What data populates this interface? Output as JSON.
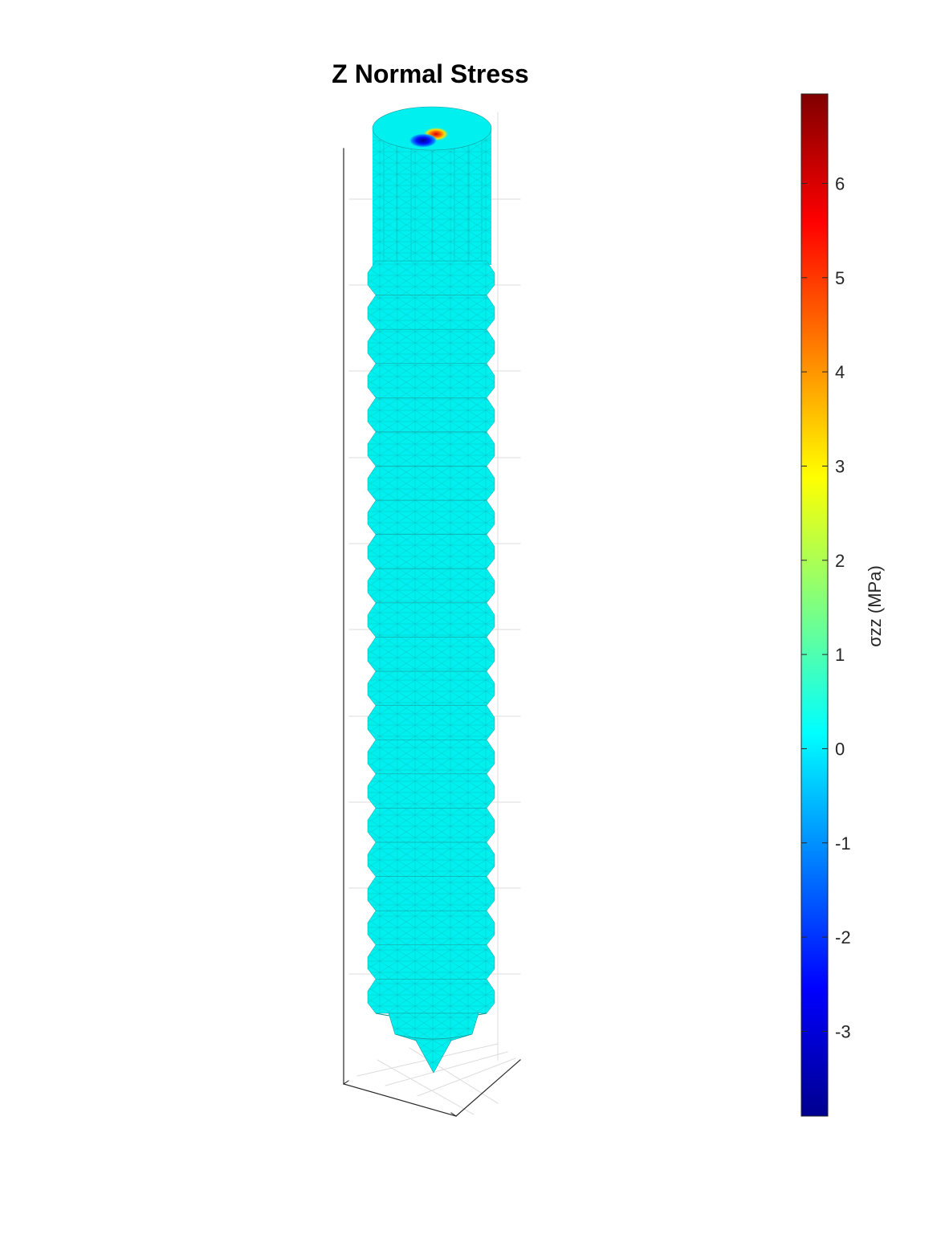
{
  "chart_data": {
    "type": "heatmap",
    "title": "Z Normal Stress",
    "subtitle": "",
    "xlabel": "",
    "ylabel": "",
    "zlabel": "",
    "view": "3d",
    "grid": true,
    "colormap": "jet",
    "colors": {
      "surface": "#00f0f0",
      "edge": "#1d9a9a",
      "axis": "#262626",
      "grid": "#dcdcdc"
    },
    "surface_value_mpa": 0.0,
    "hotspot": {
      "location": "top face",
      "max": 6.9,
      "min": -3.9
    },
    "colorbar": {
      "label": "σzz (MPa)",
      "ticks": [
        -3,
        -2,
        -1,
        0,
        1,
        2,
        3,
        4,
        5,
        6
      ],
      "tick_labels": [
        "-3",
        "-2",
        "-1",
        "0",
        "1",
        "2",
        "3",
        "4",
        "5",
        "6"
      ],
      "clim": [
        -3.9,
        6.95
      ],
      "placement": "right"
    }
  }
}
